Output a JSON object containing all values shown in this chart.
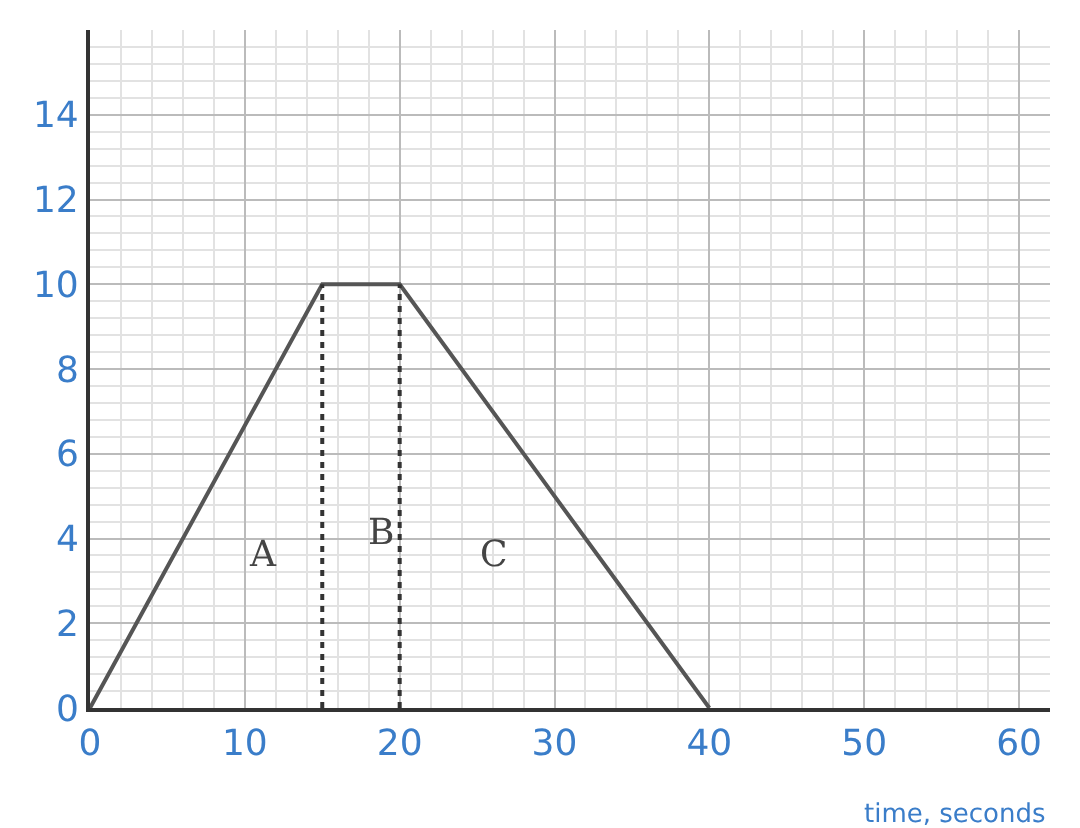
{
  "chart_data": {
    "type": "line",
    "xlabel": "time, seconds",
    "xlim": [
      0,
      62
    ],
    "ylim": [
      0,
      16
    ],
    "xticks": [
      0,
      10,
      20,
      30,
      40,
      50,
      60
    ],
    "yticks": [
      0,
      2,
      4,
      6,
      8,
      10,
      12,
      14
    ],
    "grid": true,
    "marker": "none",
    "series": [
      {
        "x": [
          0,
          15,
          20,
          40
        ],
        "values": [
          0,
          10,
          10,
          0
        ],
        "color": "#555555",
        "line_style": "solid"
      },
      {
        "x": [
          15,
          15
        ],
        "values": [
          0,
          10
        ],
        "color": "#333333",
        "line_style": "dotted"
      },
      {
        "x": [
          20,
          20
        ],
        "values": [
          0,
          10
        ],
        "color": "#333333",
        "line_style": "dotted"
      }
    ],
    "annotations": [
      "A",
      "B",
      "C"
    ]
  }
}
